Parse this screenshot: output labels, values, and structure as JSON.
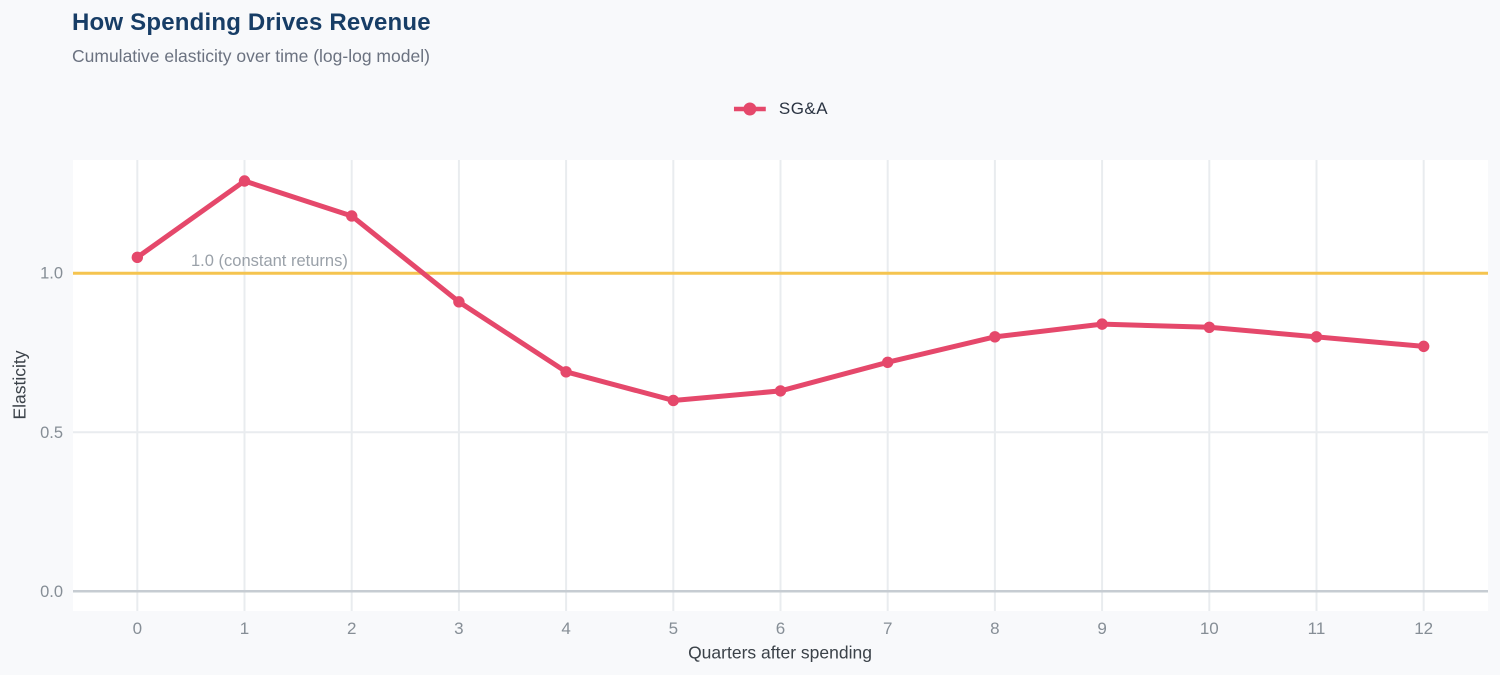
{
  "header": {
    "title": "How Spending Drives Revenue",
    "subtitle": "Cumulative elasticity over time (log-log model)"
  },
  "chart_data": {
    "type": "line",
    "title": "How Spending Drives Revenue",
    "subtitle": "Cumulative elasticity over time (log-log model)",
    "xlabel": "Quarters after spending",
    "ylabel": "Elasticity",
    "x": [
      0,
      1,
      2,
      3,
      4,
      5,
      6,
      7,
      8,
      9,
      10,
      11,
      12
    ],
    "series": [
      {
        "name": "SG&A",
        "color": "#e5486b",
        "values": [
          1.05,
          1.29,
          1.18,
          0.91,
          0.69,
          0.6,
          0.63,
          0.72,
          0.8,
          0.84,
          0.83,
          0.8,
          0.77
        ]
      }
    ],
    "reference_line": {
      "value": 1.0,
      "label": "1.0 (constant returns)",
      "color": "#f5c44f"
    },
    "xlim": [
      -0.6,
      12.6
    ],
    "ylim": [
      -0.062,
      1.356
    ],
    "x_tick_labels": [
      "0",
      "1",
      "2",
      "3",
      "4",
      "5",
      "6",
      "7",
      "8",
      "9",
      "10",
      "11",
      "12"
    ],
    "y_ticks": [
      0.0,
      0.5,
      1.0
    ],
    "y_tick_labels": [
      "0.0",
      "0.5",
      "1.0"
    ],
    "grid": true,
    "legend_position": "top-center"
  },
  "colors": {
    "page_background": "#f8f9fb",
    "plot_background": "#ffffff",
    "grid_line": "#e9ecef",
    "zero_line": "#c6ccd2",
    "tick_label": "#868e96",
    "axis_title": "#3b4249",
    "annotation_text": "#9aa1a9",
    "title_text": "#173d66",
    "subtitle_text": "#6b7280",
    "legend_text": "#2b3442"
  }
}
